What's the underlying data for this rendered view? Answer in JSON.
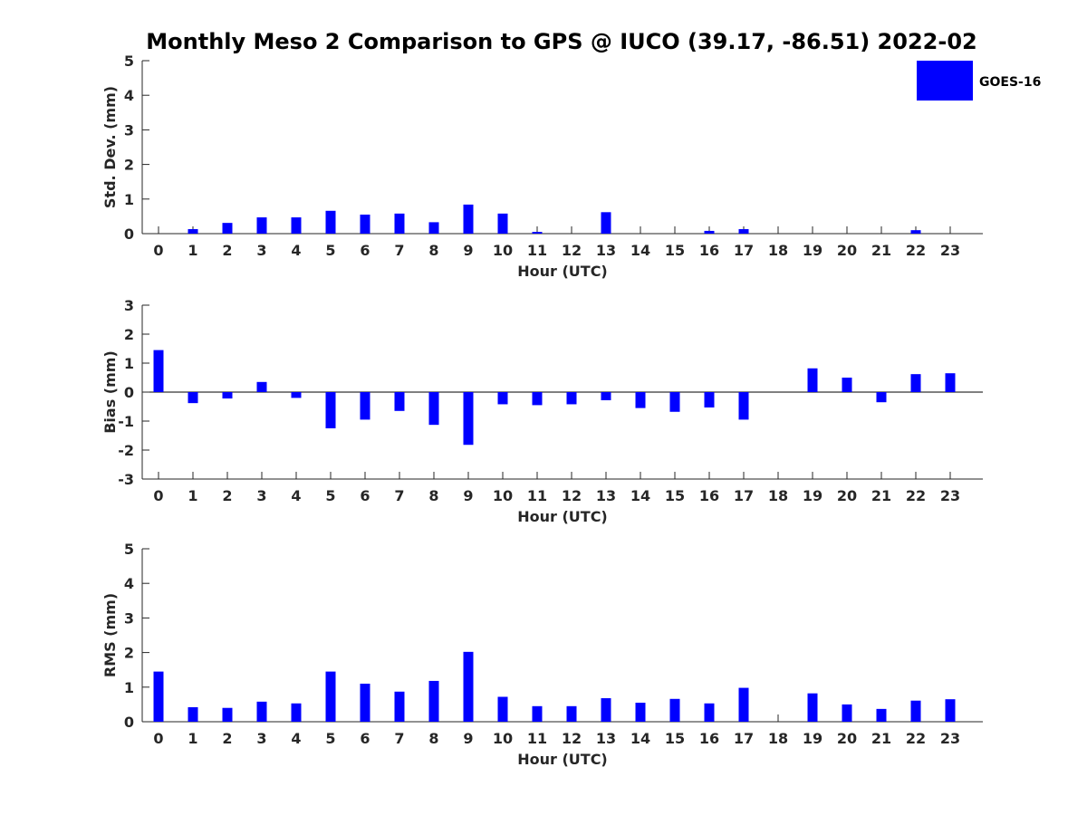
{
  "title": "Monthly Meso 2 Comparison to GPS @ IUCO (39.17, -86.51) 2022-02",
  "legend": {
    "label": "GOES-16",
    "color": "#0000ff",
    "placement": "top-right"
  },
  "chart_data": [
    {
      "type": "bar",
      "name": "std-dev",
      "ylabel": "Std. Dev. (mm)",
      "xlabel": "Hour (UTC)",
      "ylim": [
        0,
        5
      ],
      "yticks": [
        "0",
        "1",
        "2",
        "3",
        "4",
        "5"
      ],
      "categories": [
        "0",
        "1",
        "2",
        "3",
        "4",
        "5",
        "6",
        "7",
        "8",
        "9",
        "10",
        "11",
        "12",
        "13",
        "14",
        "15",
        "16",
        "17",
        "18",
        "19",
        "20",
        "21",
        "22",
        "23"
      ],
      "series": [
        {
          "color": "#0000ff",
          "values": [
            0,
            0.13,
            0.31,
            0.47,
            0.47,
            0.66,
            0.55,
            0.58,
            0.33,
            0.84,
            0.58,
            0.05,
            0,
            0.62,
            0,
            0,
            0.08,
            0.13,
            0,
            0,
            0,
            0,
            0.1,
            0
          ]
        }
      ]
    },
    {
      "type": "bar",
      "name": "bias",
      "ylabel": "Bias (mm)",
      "xlabel": "Hour (UTC)",
      "ylim": [
        -3,
        3
      ],
      "yticks": [
        "-3",
        "-2",
        "-1",
        "0",
        "1",
        "2",
        "3"
      ],
      "categories": [
        "0",
        "1",
        "2",
        "3",
        "4",
        "5",
        "6",
        "7",
        "8",
        "9",
        "10",
        "11",
        "12",
        "13",
        "14",
        "15",
        "16",
        "17",
        "18",
        "19",
        "20",
        "21",
        "22",
        "23"
      ],
      "series": [
        {
          "color": "#0000ff",
          "values": [
            1.45,
            -0.38,
            -0.22,
            0.35,
            -0.2,
            -1.25,
            -0.95,
            -0.65,
            -1.13,
            -1.82,
            -0.42,
            -0.45,
            -0.42,
            -0.28,
            -0.55,
            -0.68,
            -0.53,
            -0.95,
            0,
            0.82,
            0.5,
            -0.35,
            0.62,
            0.65
          ]
        }
      ]
    },
    {
      "type": "bar",
      "name": "rms",
      "ylabel": "RMS (mm)",
      "xlabel": "Hour (UTC)",
      "ylim": [
        0,
        5
      ],
      "yticks": [
        "0",
        "1",
        "2",
        "3",
        "4",
        "5"
      ],
      "categories": [
        "0",
        "1",
        "2",
        "3",
        "4",
        "5",
        "6",
        "7",
        "8",
        "9",
        "10",
        "11",
        "12",
        "13",
        "14",
        "15",
        "16",
        "17",
        "18",
        "19",
        "20",
        "21",
        "22",
        "23"
      ],
      "series": [
        {
          "color": "#0000ff",
          "values": [
            1.45,
            0.42,
            0.4,
            0.58,
            0.53,
            1.45,
            1.1,
            0.87,
            1.18,
            2.02,
            0.72,
            0.45,
            0.45,
            0.68,
            0.55,
            0.66,
            0.53,
            0.98,
            0,
            0.82,
            0.5,
            0.37,
            0.61,
            0.65
          ]
        }
      ]
    }
  ]
}
